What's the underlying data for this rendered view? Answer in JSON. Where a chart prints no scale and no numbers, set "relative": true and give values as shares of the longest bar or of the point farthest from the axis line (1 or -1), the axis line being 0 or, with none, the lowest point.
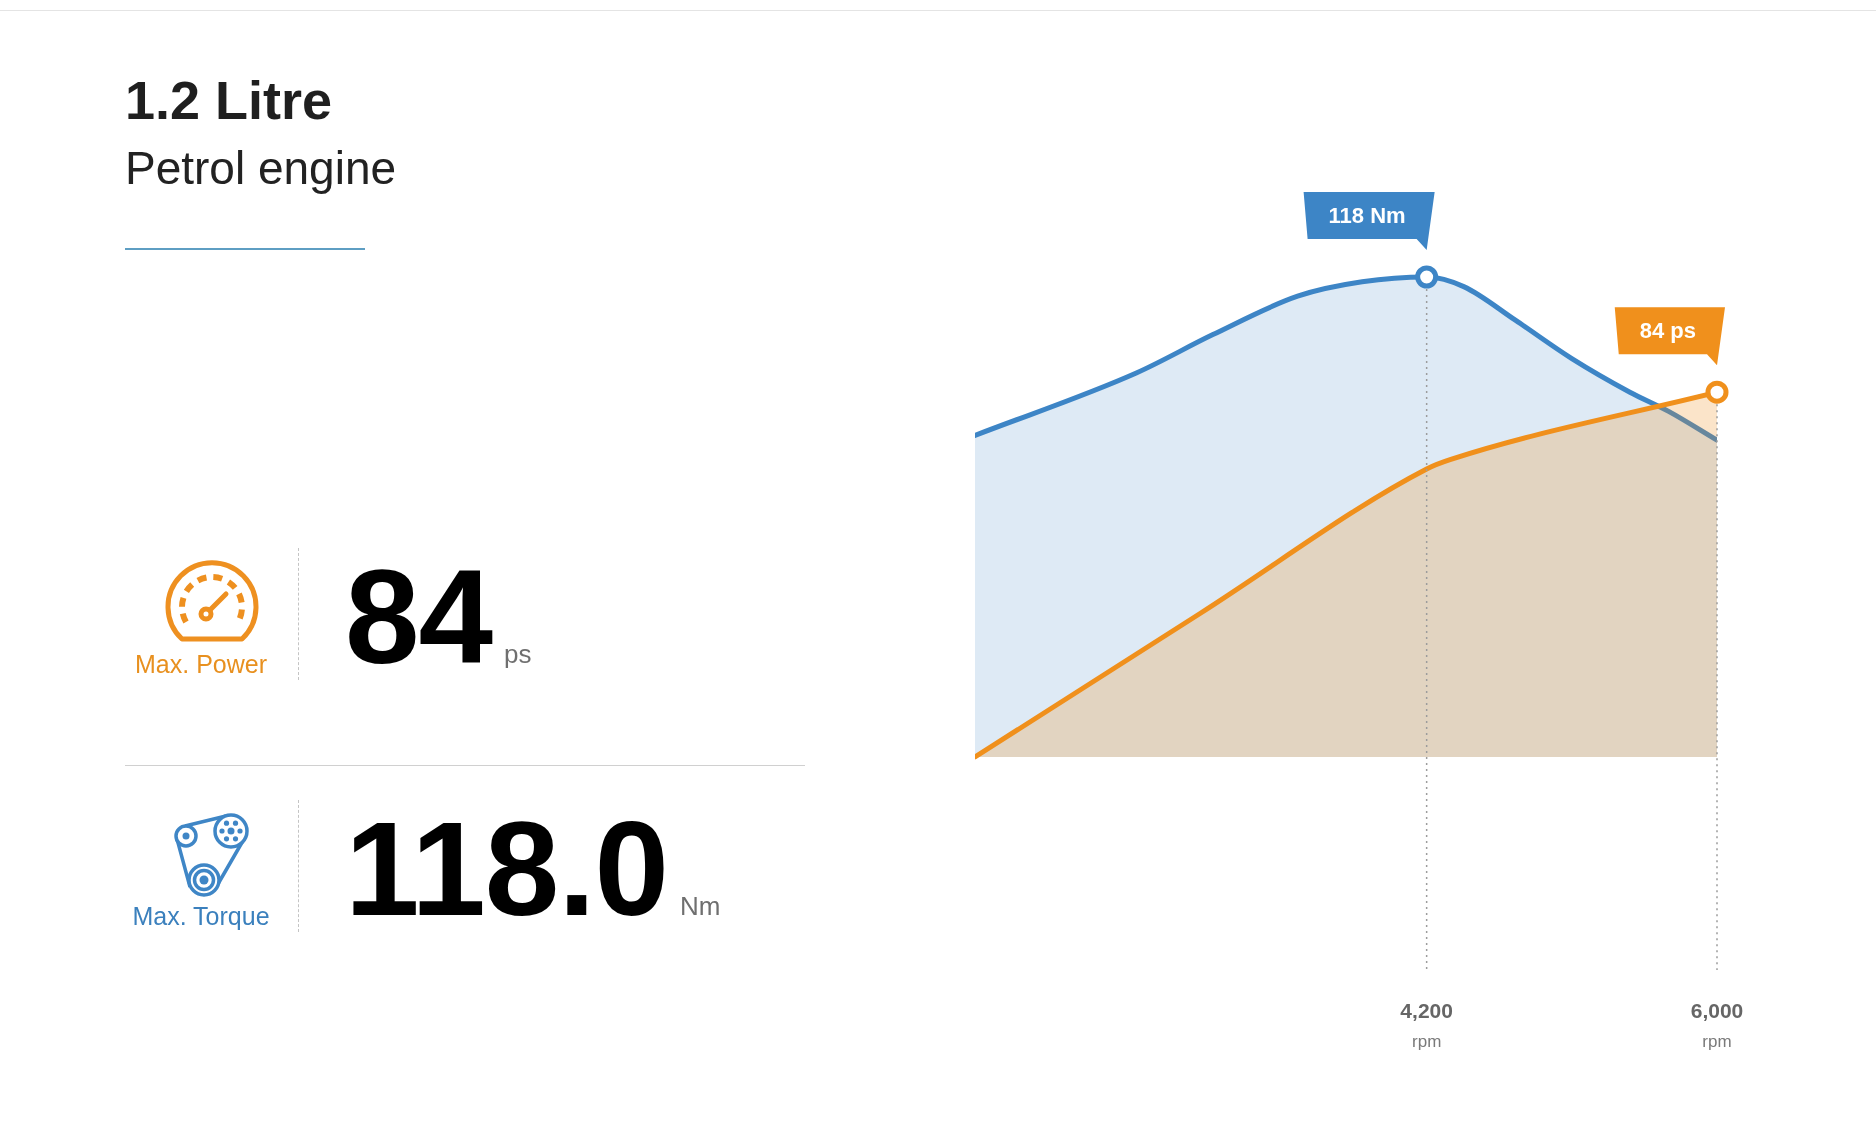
{
  "chart_data": [
    {
      "type": "other",
      "title": "1.2 Litre",
      "subtitle": "Petrol engine",
      "annotations": [
        "84",
        "ps",
        "Max. Power",
        "118.0",
        "Nm",
        "Max. Torque"
      ]
    },
    {
      "type": "area",
      "relative": true,
      "xlim": [
        1400,
        6000
      ],
      "xticks": [
        {
          "value": 4200,
          "label": "4,200\nrpm"
        },
        {
          "value": 6000,
          "label": "6,000\nrpm"
        }
      ],
      "grid": "x",
      "series": [
        {
          "color": "#3d85c6",
          "x": [
            1400,
            2400,
            2875,
            3400,
            3800,
            4200,
            4430,
            4750,
            5100,
            5460,
            5700,
            6000
          ],
          "values": [
            0.67,
            0.8,
            0.88,
            0.96,
            0.99,
            1,
            0.98,
            0.91,
            0.83,
            0.76,
            0.72,
            0.66
          ]
        },
        {
          "color": "#f0901c",
          "x": [
            1400,
            2800,
            4200,
            4350,
            6000
          ],
          "values": [
            0,
            0.3,
            0.6,
            0.62,
            0.76
          ]
        }
      ],
      "annotations": [
        {
          "text": "118 Nm",
          "x": 4200,
          "y": 1
        },
        {
          "text": "84 ps",
          "x": 6000,
          "y": 0.76
        }
      ]
    }
  ]
}
